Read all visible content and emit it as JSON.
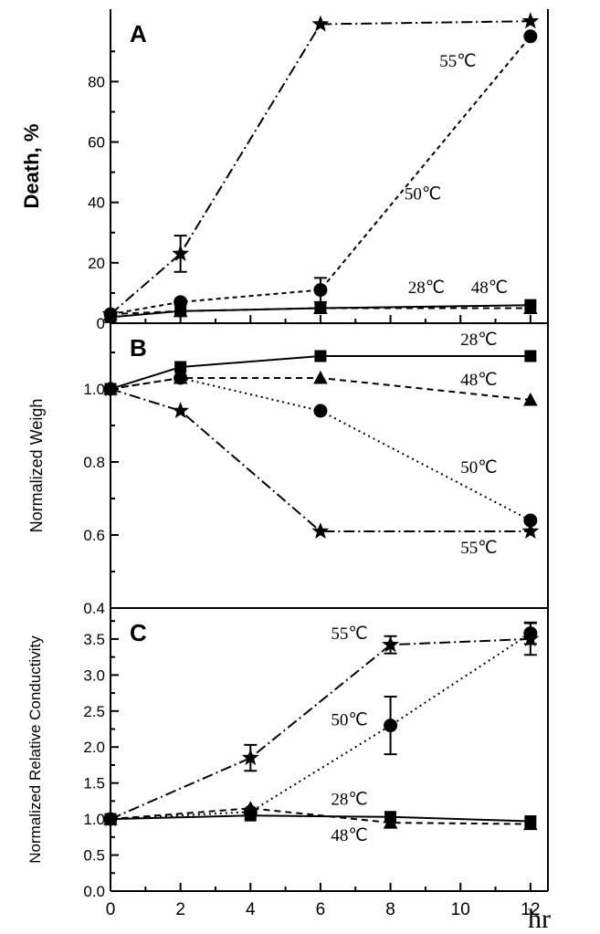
{
  "x_unit_label": "hr",
  "chart_data": [
    {
      "type": "line",
      "panel": "A",
      "ylabel": "Death, %",
      "ylim": [
        0,
        104
      ],
      "yticks": [
        "0",
        "20",
        "40",
        "60",
        "80"
      ],
      "ytick_values": [
        0,
        20,
        40,
        60,
        80
      ],
      "xlim": [
        0,
        12.5
      ],
      "xticks": [
        "0",
        "2",
        "4",
        "6",
        "8",
        "10",
        "12"
      ],
      "xtick_values": [
        0,
        2,
        4,
        6,
        8,
        10,
        12
      ],
      "series": [
        {
          "name": "55℃",
          "marker": "star",
          "dash": "dashdot",
          "x": [
            0,
            2,
            6,
            12
          ],
          "y": [
            3,
            23,
            99,
            100
          ],
          "err": [
            0,
            6,
            0,
            0
          ]
        },
        {
          "name": "50℃",
          "marker": "circle",
          "dash": "short",
          "x": [
            0,
            2,
            6,
            12
          ],
          "y": [
            3,
            7,
            11,
            95
          ],
          "err": [
            0,
            0,
            4,
            0
          ]
        },
        {
          "name": "48℃",
          "marker": "triangle",
          "dash": "dashed",
          "x": [
            0,
            2,
            6,
            12
          ],
          "y": [
            3,
            4,
            5,
            5
          ],
          "err": [
            0,
            0,
            0,
            0
          ]
        },
        {
          "name": "28℃",
          "marker": "square",
          "dash": "solid",
          "x": [
            0,
            2,
            6,
            12
          ],
          "y": [
            2,
            4,
            5,
            6
          ],
          "err": [
            0,
            0,
            0,
            0
          ]
        }
      ],
      "labels": [
        {
          "text": "55℃",
          "x": 9.4,
          "y": 85
        },
        {
          "text": "50℃",
          "x": 8.4,
          "y": 41
        },
        {
          "text": "28℃",
          "x": 8.5,
          "y": 10
        },
        {
          "text": "48℃",
          "x": 10.3,
          "y": 10
        }
      ]
    },
    {
      "type": "line",
      "panel": "B",
      "ylabel": "Normalized Weigh",
      "ylim": [
        0.4,
        1.18
      ],
      "yticks": [
        "0.4",
        "0.6",
        "0.8",
        "1.0"
      ],
      "ytick_values": [
        0.4,
        0.6,
        0.8,
        1.0
      ],
      "xlim": [
        0,
        12.5
      ],
      "series": [
        {
          "name": "28℃",
          "marker": "square",
          "dash": "solid",
          "x": [
            0,
            2,
            6,
            12
          ],
          "y": [
            1.0,
            1.06,
            1.09,
            1.09
          ]
        },
        {
          "name": "48℃",
          "marker": "triangle",
          "dash": "dashed",
          "x": [
            0,
            2,
            6,
            12
          ],
          "y": [
            1.0,
            1.03,
            1.03,
            0.97
          ]
        },
        {
          "name": "50℃",
          "marker": "circle",
          "dash": "dotted",
          "x": [
            0,
            2,
            6,
            12
          ],
          "y": [
            1.0,
            1.03,
            0.94,
            0.64
          ]
        },
        {
          "name": "55℃",
          "marker": "star",
          "dash": "dashdot",
          "x": [
            0,
            2,
            6,
            12
          ],
          "y": [
            1.0,
            0.94,
            0.61,
            0.61
          ]
        }
      ],
      "labels": [
        {
          "text": "28℃",
          "x": 10.0,
          "y": 1.12
        },
        {
          "text": "48℃",
          "x": 10.0,
          "y": 1.01
        },
        {
          "text": "50℃",
          "x": 10.0,
          "y": 0.77
        },
        {
          "text": "55℃",
          "x": 10.0,
          "y": 0.55
        }
      ]
    },
    {
      "type": "line",
      "panel": "C",
      "ylabel": "Normalized Relative Conductivity",
      "ylim": [
        0,
        3.93
      ],
      "yticks": [
        "0.0",
        "0.5",
        "1.0",
        "1.5",
        "2.0",
        "2.5",
        "3.0",
        "3.5"
      ],
      "ytick_values": [
        0,
        0.5,
        1.0,
        1.5,
        2.0,
        2.5,
        3.0,
        3.5
      ],
      "xlim": [
        0,
        12.5
      ],
      "xticks": [
        "0",
        "2",
        "4",
        "6",
        "8",
        "10",
        "12"
      ],
      "xtick_values": [
        0,
        2,
        4,
        6,
        8,
        10,
        12
      ],
      "series": [
        {
          "name": "55℃",
          "marker": "star",
          "dash": "dashdot",
          "x": [
            0,
            4,
            8,
            12
          ],
          "y": [
            1.0,
            1.85,
            3.42,
            3.5
          ],
          "err": [
            0,
            0.18,
            0.12,
            0.22
          ]
        },
        {
          "name": "50℃",
          "marker": "circle",
          "dash": "dotted",
          "x": [
            0,
            4,
            8,
            12
          ],
          "y": [
            1.0,
            1.1,
            2.3,
            3.58
          ],
          "err": [
            0,
            0,
            0.4,
            0.15
          ]
        },
        {
          "name": "28℃",
          "marker": "square",
          "dash": "solid",
          "x": [
            0,
            4,
            8,
            12
          ],
          "y": [
            1.0,
            1.05,
            1.03,
            0.97
          ],
          "err": [
            0,
            0,
            0,
            0
          ]
        },
        {
          "name": "48℃",
          "marker": "triangle",
          "dash": "dashed",
          "x": [
            0,
            4,
            8,
            12
          ],
          "y": [
            1.0,
            1.15,
            0.95,
            0.93
          ],
          "err": [
            0,
            0,
            0,
            0
          ]
        }
      ],
      "labels": [
        {
          "text": "55℃",
          "x": 6.3,
          "y": 3.5
        },
        {
          "text": "50℃",
          "x": 6.3,
          "y": 2.3
        },
        {
          "text": "28℃",
          "x": 6.3,
          "y": 1.2
        },
        {
          "text": "48℃",
          "x": 6.3,
          "y": 0.7
        }
      ]
    }
  ]
}
